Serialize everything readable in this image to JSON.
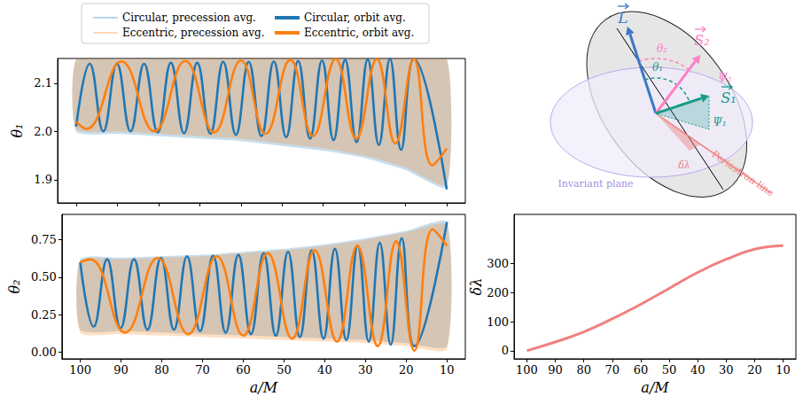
{
  "chart_data": [
    {
      "type": "line",
      "ylabel": "θ₁",
      "xlim": [
        104.5,
        5.5
      ],
      "xticks": [
        100,
        90,
        80,
        70,
        60,
        50,
        40,
        30,
        20,
        10
      ],
      "ylim": [
        1.852,
        2.151
      ],
      "yticks": [
        1.9,
        {
          "value": 2,
          "label": "2.0"
        },
        2.1
      ],
      "tick_labels": "y",
      "grid": false,
      "legend": "top left",
      "series": [
        {
          "name": "Circular, precession avg.",
          "type": "band",
          "color": "#1f77b4",
          "x": [
            100,
            90,
            80,
            70,
            60,
            50,
            40,
            30,
            20,
            10
          ],
          "lower": [
            2.0,
            1.995,
            1.99,
            1.985,
            1.98,
            1.97,
            1.96,
            1.945,
            1.92,
            1.885
          ],
          "upper": [
            2.148,
            2.148,
            2.149,
            2.149,
            2.15,
            2.15,
            2.15,
            2.151,
            2.151,
            2.151
          ]
        },
        {
          "name": "Eccentric, precession avg.",
          "type": "band",
          "color": "#ff7f0e",
          "x": [
            100,
            90,
            80,
            70,
            60,
            50,
            40,
            30,
            20,
            10
          ],
          "lower": [
            2.005,
            2.0,
            1.995,
            1.99,
            1.985,
            1.975,
            1.965,
            1.95,
            1.925,
            1.89
          ],
          "upper": [
            2.15,
            2.15,
            2.15,
            2.151,
            2.151,
            2.151,
            2.151,
            2.151,
            2.151,
            2.151
          ]
        },
        {
          "name": "Circular, orbit avg.",
          "type": "line",
          "color": "#1f77b4",
          "x": [
            100,
            96.7,
            93.4,
            90.1,
            86.8,
            83.5,
            80.2,
            77.0,
            73.8,
            70.6,
            67.4,
            64.3,
            61.2,
            58.1,
            55.0,
            52.0,
            49.0,
            46.1,
            43.2,
            40.3,
            37.5,
            34.7,
            31.9,
            29.2,
            26.5,
            23.8,
            21.1,
            18.0,
            10
          ],
          "values": [
            2.01,
            2.14,
            2.0,
            2.14,
            2.0,
            2.14,
            1.998,
            2.142,
            1.996,
            2.142,
            1.995,
            2.144,
            1.993,
            2.144,
            1.99,
            2.145,
            1.988,
            2.146,
            1.985,
            2.147,
            1.982,
            2.148,
            1.978,
            2.149,
            1.972,
            2.15,
            1.962,
            2.15,
            1.88
          ]
        },
        {
          "name": "Eccentric, orbit avg.",
          "type": "line",
          "color": "#ff7f0e",
          "x": [
            100,
            97.5,
            89,
            81,
            73.5,
            66.5,
            60,
            54,
            48,
            42.5,
            37,
            32,
            27,
            22.5,
            18,
            13.5,
            10
          ],
          "values": [
            2.02,
            2.005,
            2.145,
            2.0,
            2.146,
            1.998,
            2.147,
            1.995,
            2.148,
            1.99,
            2.15,
            1.985,
            2.15,
            1.975,
            2.15,
            1.93,
            1.965
          ]
        }
      ]
    },
    {
      "type": "line",
      "xlabel": "a/M",
      "ylabel": "θ₂",
      "xlim": [
        104.5,
        5.5
      ],
      "xticks": [
        100,
        90,
        80,
        70,
        60,
        50,
        40,
        30,
        20,
        10
      ],
      "ylim": [
        -0.045,
        0.92
      ],
      "yticks": [
        {
          "value": 0,
          "label": "0.00"
        },
        0.25,
        {
          "value": 0.5,
          "label": "0.50"
        },
        0.75
      ],
      "grid": false,
      "series": [
        {
          "name": "Circular, precession avg.",
          "type": "band",
          "color": "#1f77b4",
          "x": [
            100,
            90,
            80,
            70,
            60,
            50,
            40,
            30,
            20,
            10
          ],
          "lower": [
            0.15,
            0.14,
            0.13,
            0.12,
            0.11,
            0.1,
            0.09,
            0.08,
            0.06,
            0.04
          ],
          "upper": [
            0.62,
            0.63,
            0.64,
            0.65,
            0.67,
            0.69,
            0.72,
            0.76,
            0.81,
            0.87
          ]
        },
        {
          "name": "Eccentric, precession avg.",
          "type": "band",
          "color": "#ff7f0e",
          "x": [
            100,
            90,
            80,
            70,
            60,
            50,
            40,
            30,
            20,
            10
          ],
          "lower": [
            0.13,
            0.12,
            0.11,
            0.1,
            0.09,
            0.08,
            0.07,
            0.06,
            0.04,
            0.02
          ],
          "upper": [
            0.61,
            0.62,
            0.63,
            0.64,
            0.66,
            0.68,
            0.71,
            0.75,
            0.8,
            0.85
          ]
        },
        {
          "name": "Circular, orbit avg.",
          "type": "line",
          "color": "#1f77b4",
          "x": [
            100,
            96.7,
            93.4,
            90.1,
            86.8,
            83.5,
            80.2,
            77.0,
            73.8,
            70.6,
            67.4,
            64.3,
            61.2,
            58.1,
            55.0,
            52.0,
            49.0,
            46.1,
            43.2,
            40.3,
            37.5,
            34.7,
            31.9,
            29.2,
            26.5,
            23.8,
            21.1,
            18.0,
            10
          ],
          "values": [
            0.6,
            0.17,
            0.62,
            0.16,
            0.62,
            0.15,
            0.63,
            0.15,
            0.64,
            0.14,
            0.645,
            0.13,
            0.65,
            0.12,
            0.66,
            0.11,
            0.67,
            0.1,
            0.68,
            0.09,
            0.69,
            0.08,
            0.71,
            0.07,
            0.73,
            0.05,
            0.76,
            0.04,
            0.87
          ]
        },
        {
          "name": "Eccentric, orbit avg.",
          "type": "line",
          "color": "#ff7f0e",
          "x": [
            100,
            97.5,
            89,
            81,
            73.5,
            66.5,
            60,
            54,
            48,
            42.5,
            37,
            32,
            27,
            22.5,
            18,
            13.5,
            10
          ],
          "values": [
            0.6,
            0.62,
            0.13,
            0.63,
            0.12,
            0.64,
            0.11,
            0.66,
            0.09,
            0.68,
            0.07,
            0.71,
            0.04,
            0.74,
            0.01,
            0.82,
            0.71
          ]
        }
      ]
    },
    {
      "type": "line",
      "xlabel": "a/M",
      "ylabel": "δλ",
      "xlim": [
        104.5,
        5.5
      ],
      "xticks": [
        100,
        90,
        80,
        70,
        60,
        50,
        40,
        30,
        20,
        10
      ],
      "ylim": [
        -28,
        470
      ],
      "yticks": [
        0,
        100,
        200,
        300
      ],
      "grid": false,
      "color": "#f08080",
      "x": [
        100,
        90,
        80,
        70,
        60,
        50,
        40,
        30,
        20,
        10
      ],
      "values": [
        0,
        30,
        65,
        110,
        160,
        215,
        270,
        315,
        350,
        362
      ]
    }
  ],
  "diagram": {
    "labels": {
      "L": "L",
      "S1": "S₁",
      "S2": "S₂",
      "theta1": "θ₁",
      "theta2": "θ₂",
      "psi1": "Ψ₁",
      "psi2": "Ψ₂",
      "dlambda": "δλ",
      "plane": "Invariant plane",
      "periastron": "Periastron line"
    }
  }
}
